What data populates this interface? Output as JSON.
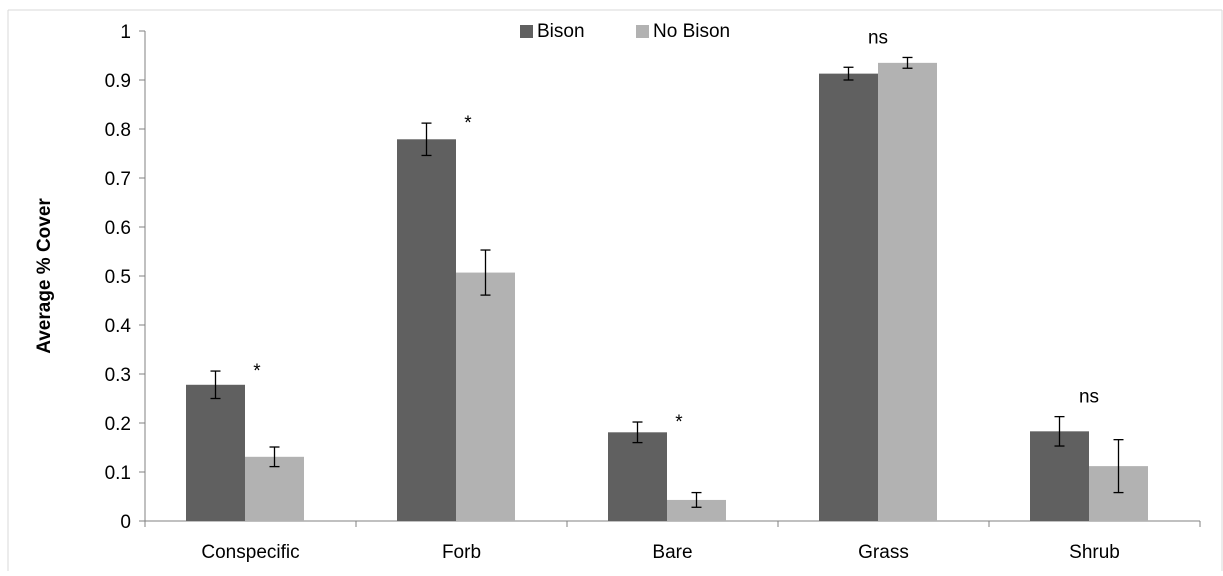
{
  "chart_data": {
    "type": "bar",
    "title": "",
    "xlabel": "",
    "ylabel": "Average % Cover",
    "ylim": [
      0,
      1
    ],
    "yticks": [
      "0",
      "0.1",
      "0.2",
      "0.3",
      "0.4",
      "0.5",
      "0.6",
      "0.7",
      "0.8",
      "0.9",
      "1"
    ],
    "categories": [
      "Conspecific",
      "Forb",
      "Bare",
      "Grass",
      "Shrub"
    ],
    "series": [
      {
        "name": "Bison",
        "color": "#606060",
        "values": [
          0.278,
          0.779,
          0.181,
          0.913,
          0.183
        ],
        "errors": [
          0.028,
          0.033,
          0.021,
          0.013,
          0.03
        ]
      },
      {
        "name": "No Bison",
        "color": "#b2b2b2",
        "values": [
          0.131,
          0.507,
          0.043,
          0.935,
          0.112
        ],
        "errors": [
          0.02,
          0.046,
          0.015,
          0.011,
          0.054
        ]
      }
    ],
    "annotations": [
      "*",
      "*",
      "*",
      "ns",
      "ns"
    ],
    "legend_position": "top-center",
    "grid": false
  }
}
